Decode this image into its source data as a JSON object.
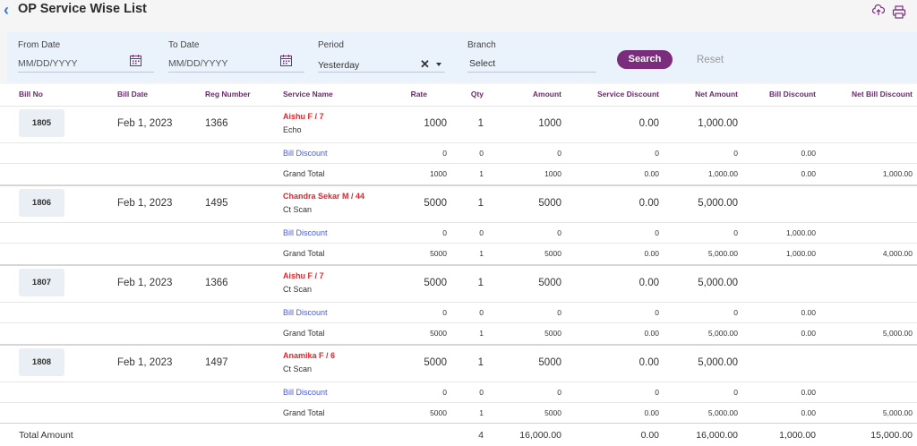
{
  "header": {
    "title": "OP Service Wise List"
  },
  "filters": {
    "from_date": {
      "label": "From Date",
      "placeholder": "MM/DD/YYYY"
    },
    "to_date": {
      "label": "To Date",
      "placeholder": "MM/DD/YYYY"
    },
    "period": {
      "label": "Period",
      "value": "Yesterday"
    },
    "branch": {
      "label": "Branch",
      "placeholder": "Select"
    },
    "search_label": "Search",
    "reset_label": "Reset"
  },
  "columns": [
    "Bill No",
    "Bill Date",
    "Reg Number",
    "Service Name",
    "Rate",
    "Qty",
    "Amount",
    "Service Discount",
    "Net Amount",
    "Bill Discount",
    "Net Bill Discount"
  ],
  "bills": [
    {
      "bill_no": "1805",
      "bill_date": "Feb 1, 2023",
      "reg_no": "1366",
      "patient": "Aishu F / 7",
      "service": "Echo",
      "rate": "1000",
      "qty": "1",
      "amount": "1000",
      "service_discount": "0.00",
      "net_amount": "1,000.00",
      "bill_discount": {
        "label": "Bill Discount",
        "rate": "0",
        "qty": "0",
        "amount": "0",
        "service_discount": "0",
        "net_amount": "0",
        "bill_discount": "0.00"
      },
      "grand_total": {
        "label": "Grand Total",
        "rate": "1000",
        "qty": "1",
        "amount": "1000",
        "service_discount": "0.00",
        "net_amount": "1,000.00",
        "bill_discount": "0.00",
        "net_bill_discount": "1,000.00"
      }
    },
    {
      "bill_no": "1806",
      "bill_date": "Feb 1, 2023",
      "reg_no": "1495",
      "patient": "Chandra Sekar M / 44",
      "service": "Ct Scan",
      "rate": "5000",
      "qty": "1",
      "amount": "5000",
      "service_discount": "0.00",
      "net_amount": "5,000.00",
      "bill_discount": {
        "label": "Bill Discount",
        "rate": "0",
        "qty": "0",
        "amount": "0",
        "service_discount": "0",
        "net_amount": "0",
        "bill_discount": "1,000.00"
      },
      "grand_total": {
        "label": "Grand Total",
        "rate": "5000",
        "qty": "1",
        "amount": "5000",
        "service_discount": "0.00",
        "net_amount": "5,000.00",
        "bill_discount": "1,000.00",
        "net_bill_discount": "4,000.00"
      }
    },
    {
      "bill_no": "1807",
      "bill_date": "Feb 1, 2023",
      "reg_no": "1366",
      "patient": "Aishu F / 7",
      "service": "Ct Scan",
      "rate": "5000",
      "qty": "1",
      "amount": "5000",
      "service_discount": "0.00",
      "net_amount": "5,000.00",
      "bill_discount": {
        "label": "Bill Discount",
        "rate": "0",
        "qty": "0",
        "amount": "0",
        "service_discount": "0",
        "net_amount": "0",
        "bill_discount": "0.00"
      },
      "grand_total": {
        "label": "Grand Total",
        "rate": "5000",
        "qty": "1",
        "amount": "5000",
        "service_discount": "0.00",
        "net_amount": "5,000.00",
        "bill_discount": "0.00",
        "net_bill_discount": "5,000.00"
      }
    },
    {
      "bill_no": "1808",
      "bill_date": "Feb 1, 2023",
      "reg_no": "1497",
      "patient": "Anamika F / 6",
      "service": "Ct Scan",
      "rate": "5000",
      "qty": "1",
      "amount": "5000",
      "service_discount": "0.00",
      "net_amount": "5,000.00",
      "bill_discount": {
        "label": "Bill Discount",
        "rate": "0",
        "qty": "0",
        "amount": "0",
        "service_discount": "0",
        "net_amount": "0",
        "bill_discount": "0.00"
      },
      "grand_total": {
        "label": "Grand Total",
        "rate": "5000",
        "qty": "1",
        "amount": "5000",
        "service_discount": "0.00",
        "net_amount": "5,000.00",
        "bill_discount": "0.00",
        "net_bill_discount": "5,000.00"
      }
    }
  ],
  "totals": {
    "label": "Total Amount",
    "qty": "4",
    "amount": "16,000.00",
    "service_discount": "0.00",
    "net_amount": "16,000.00",
    "bill_discount": "1,000.00",
    "net_bill_discount": "15,000.00"
  },
  "colors": {
    "accent": "#7a2d7c",
    "patient": "#e3242b",
    "bill_discount": "#4b5bd1",
    "filter_bg": "#eaf2fb"
  },
  "icons": [
    "back-icon",
    "upload-icon",
    "print-icon",
    "calendar-icon",
    "clear-icon",
    "chevron-down-icon"
  ]
}
